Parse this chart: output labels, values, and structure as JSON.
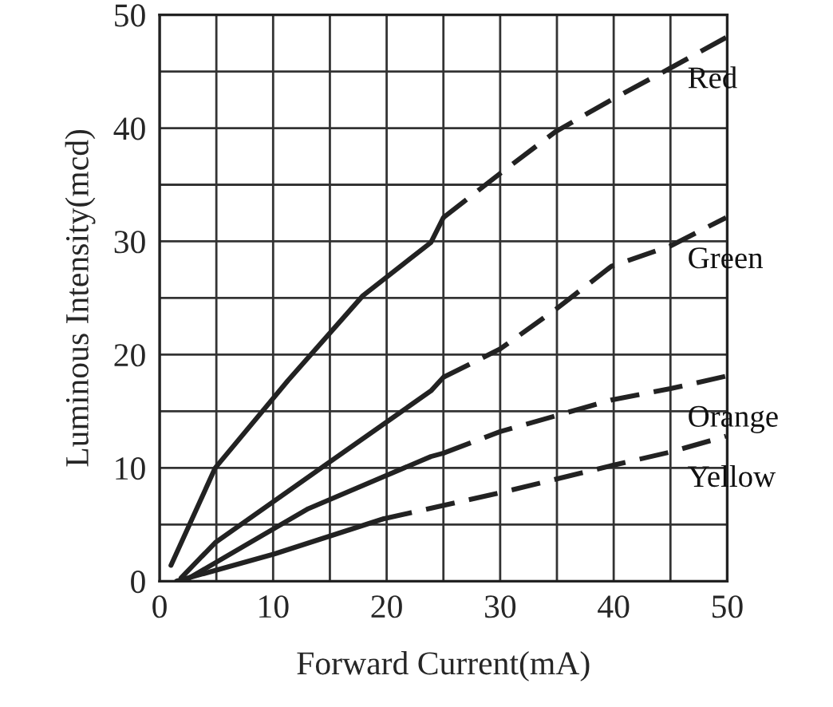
{
  "chart_data": {
    "type": "line",
    "xlabel": "Forward Current(mA)",
    "ylabel": "Luminous Intensity(mcd)",
    "xlim": [
      0,
      50
    ],
    "ylim": [
      0,
      50
    ],
    "xticks": [
      0,
      {
        "value": 5,
        "label": null
      },
      10,
      {
        "value": 15,
        "label": null
      },
      20,
      {
        "value": 25,
        "label": null
      },
      30,
      {
        "value": 35,
        "label": null
      },
      40,
      {
        "value": 45,
        "label": null
      },
      50
    ],
    "yticks": [
      0,
      {
        "value": 5,
        "label": null
      },
      10,
      {
        "value": 15,
        "label": null
      },
      20,
      {
        "value": 25,
        "label": null
      },
      30,
      {
        "value": 35,
        "label": null
      },
      40,
      {
        "value": 45,
        "label": null
      },
      50
    ],
    "grid": true,
    "legend": false,
    "series": [
      {
        "color": "#222222",
        "line_style": "solid",
        "x": [
          1.0,
          4.9,
          11.3,
          17.9,
          23.9,
          25
        ],
        "values": [
          1.4,
          10,
          17.7,
          25.2,
          29.9,
          32.1
        ]
      },
      {
        "name": "Red",
        "color": "#222222",
        "line_style": "dashed",
        "x": [
          25,
          30,
          34.9,
          39.8,
          45,
          49.9
        ],
        "values": [
          32.1,
          36,
          39.7,
          42.5,
          45.3,
          48.0
        ]
      },
      {
        "color": "#222222",
        "line_style": "solid",
        "x": [
          1.9,
          4.9,
          14.8,
          23.9,
          25
        ],
        "values": [
          0.3,
          3.4,
          10.4,
          16.8,
          18.0
        ]
      },
      {
        "name": "Green",
        "color": "#222222",
        "line_style": "dashed",
        "x": [
          25,
          30,
          34.9,
          39.8,
          45,
          49.9
        ],
        "values": [
          18.0,
          20.5,
          24.0,
          27.8,
          29.6,
          32.1
        ]
      },
      {
        "color": "#222222",
        "line_style": "solid",
        "x": [
          2.3,
          13.1,
          23.9,
          25
        ],
        "values": [
          0.1,
          6.4,
          11.0,
          11.3
        ]
      },
      {
        "name": "Orange",
        "color": "#222222",
        "line_style": "dashed",
        "x": [
          25,
          30,
          34.9,
          39.8,
          45,
          49.9
        ],
        "values": [
          11.3,
          13.2,
          14.6,
          16.0,
          17.0,
          18.1
        ]
      },
      {
        "color": "#222222",
        "line_style": "solid",
        "x": [
          1.5,
          10.1,
          19.7
        ],
        "values": [
          0,
          2.4,
          5.5
        ]
      },
      {
        "name": "Yellow",
        "color": "#222222",
        "line_style": "dashed",
        "x": [
          19.7,
          30,
          34.9,
          39.8,
          45,
          49.9
        ],
        "values": [
          5.5,
          7.8,
          9.0,
          10.2,
          11.4,
          12.8
        ]
      }
    ]
  }
}
